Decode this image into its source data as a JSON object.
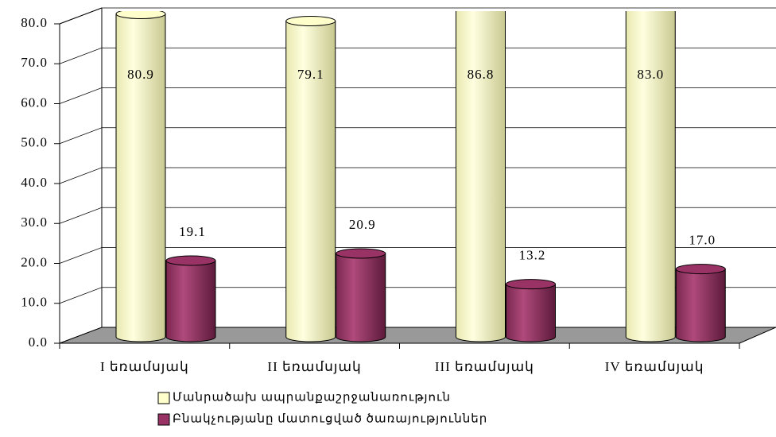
{
  "chart_data": {
    "type": "bar3d",
    "categories": [
      "I եռամսյակ",
      "II եռամսյակ",
      "III եռամսյակ",
      "IV եռամսյակ"
    ],
    "series": [
      {
        "name": "Մանրածախ ապրանքաշրջանառություն",
        "color": "#ffffcc",
        "values": [
          80.9,
          79.1,
          86.8,
          83.0
        ],
        "value_labels": [
          "80.9",
          "79.1",
          "86.8",
          "83.0"
        ]
      },
      {
        "name": "Բնակչությանը մատուցված ծառայություններ",
        "color": "#993366",
        "values": [
          19.1,
          20.9,
          13.2,
          17.0
        ],
        "value_labels": [
          "19.1",
          "20.9",
          "13.2",
          "17.0"
        ]
      }
    ],
    "ylim": [
      0,
      80
    ],
    "yticks": [
      {
        "value": 0,
        "label": "0.0"
      },
      {
        "value": 10,
        "label": "10.0"
      },
      {
        "value": 20,
        "label": "20.0"
      },
      {
        "value": 30,
        "label": "30.0"
      },
      {
        "value": 40,
        "label": "40.0"
      },
      {
        "value": 50,
        "label": "50.0"
      },
      {
        "value": 60,
        "label": "60.0"
      },
      {
        "value": 70,
        "label": "70.0"
      },
      {
        "value": 80,
        "label": "80.0"
      }
    ],
    "grid": true,
    "legend": "bottom"
  }
}
